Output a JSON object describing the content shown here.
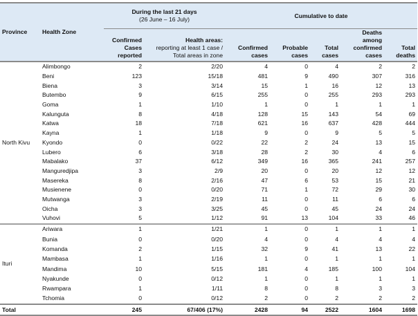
{
  "header": {
    "province": "Province",
    "health_zone": "Health Zone",
    "group_recent_title": "During the last 21 days",
    "group_recent_dates": "(26 June – 16 July)",
    "group_cumulative": "Cumulative to date",
    "confirmed_recent": "Confirmed Cases reported",
    "health_areas_bold": "Health areas:",
    "health_areas_rest": "reporting at least 1 case / Total areas in zone",
    "confirmed_cum": "Confirmed cases",
    "probable": "Probable cases",
    "total_cases": "Total cases",
    "deaths_confirmed": "Deaths among confirmed cases",
    "total_deaths": "Total deaths"
  },
  "provinces": [
    {
      "name": "North Kivu",
      "rows": [
        [
          "Alimbongo",
          "2",
          "2/20",
          "4",
          "0",
          "4",
          "2",
          "2"
        ],
        [
          "Beni",
          "123",
          "15/18",
          "481",
          "9",
          "490",
          "307",
          "316"
        ],
        [
          "Biena",
          "3",
          "3/14",
          "15",
          "1",
          "16",
          "12",
          "13"
        ],
        [
          "Butembo",
          "9",
          "6/15",
          "255",
          "0",
          "255",
          "293",
          "293"
        ],
        [
          "Goma",
          "1",
          "1/10",
          "1",
          "0",
          "1",
          "1",
          "1"
        ],
        [
          "Kalunguta",
          "8",
          "4/18",
          "128",
          "15",
          "143",
          "54",
          "69"
        ],
        [
          "Katwa",
          "18",
          "7/18",
          "621",
          "16",
          "637",
          "428",
          "444"
        ],
        [
          "Kayna",
          "1",
          "1/18",
          "9",
          "0",
          "9",
          "5",
          "5"
        ],
        [
          "Kyondo",
          "0",
          "0/22",
          "22",
          "2",
          "24",
          "13",
          "15"
        ],
        [
          "Lubero",
          "6",
          "3/18",
          "28",
          "2",
          "30",
          "4",
          "6"
        ],
        [
          "Mabalako",
          "37",
          "6/12",
          "349",
          "16",
          "365",
          "241",
          "257"
        ],
        [
          "Manguredjipa",
          "3",
          "2/9",
          "20",
          "0",
          "20",
          "12",
          "12"
        ],
        [
          "Masereka",
          "8",
          "2/16",
          "47",
          "6",
          "53",
          "15",
          "21"
        ],
        [
          "Musienene",
          "0",
          "0/20",
          "71",
          "1",
          "72",
          "29",
          "30"
        ],
        [
          "Mutwanga",
          "3",
          "2/19",
          "11",
          "0",
          "11",
          "6",
          "6"
        ],
        [
          "Oicha",
          "3",
          "3/25",
          "45",
          "0",
          "45",
          "24",
          "24"
        ],
        [
          "Vuhovi",
          "5",
          "1/12",
          "91",
          "13",
          "104",
          "33",
          "46"
        ]
      ]
    },
    {
      "name": "Ituri",
      "rows": [
        [
          "Ariwara",
          "1",
          "1/21",
          "1",
          "0",
          "1",
          "1",
          "1"
        ],
        [
          "Bunia",
          "0",
          "0/20",
          "4",
          "0",
          "4",
          "4",
          "4"
        ],
        [
          "Komanda",
          "2",
          "1/15",
          "32",
          "9",
          "41",
          "13",
          "22"
        ],
        [
          "Mambasa",
          "1",
          "1/16",
          "1",
          "0",
          "1",
          "1",
          "1"
        ],
        [
          "Mandima",
          "10",
          "5/15",
          "181",
          "4",
          "185",
          "100",
          "104"
        ],
        [
          "Nyakunde",
          "0",
          "0/12",
          "1",
          "0",
          "1",
          "1",
          "1"
        ],
        [
          "Rwampara",
          "1",
          "1/11",
          "8",
          "0",
          "8",
          "3",
          "3"
        ],
        [
          "Tchomia",
          "0",
          "0/12",
          "2",
          "0",
          "2",
          "2",
          "2"
        ]
      ]
    }
  ],
  "total": [
    "Total",
    "",
    "245",
    "67/406 (17%)",
    "2428",
    "94",
    "2522",
    "1604",
    "1698"
  ]
}
